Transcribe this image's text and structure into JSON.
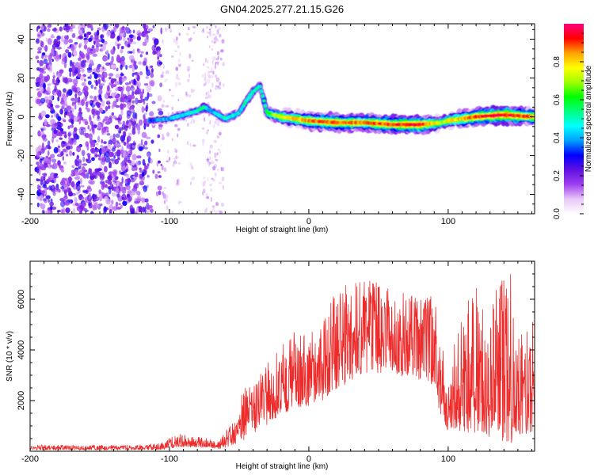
{
  "title": "GN04.2025.277.21.15.G26",
  "chart_data": [
    {
      "type": "heatmap",
      "xlabel": "Height of straight line (km)",
      "ylabel": "Frequency (Hz)",
      "xlim": [
        -200,
        162
      ],
      "ylim": [
        -50,
        48
      ],
      "xticks": [
        -200,
        -100,
        0,
        100
      ],
      "yticks": [
        -40,
        -20,
        0,
        20,
        40
      ],
      "colorbar": {
        "label": "Normalized spectral amplitude",
        "range": [
          0.0,
          1.0
        ],
        "ticks": [
          "0.0",
          "0.2",
          "0.4",
          "0.6",
          "0.8"
        ],
        "colormap": [
          "#ffffff",
          "#e8c8f8",
          "#a040f0",
          "#6010e0",
          "#0000ff",
          "#00a0ff",
          "#00ffff",
          "#00ff80",
          "#00ff00",
          "#a0ff00",
          "#ffff00",
          "#ffa000",
          "#ff0000",
          "#ff0080"
        ]
      },
      "ridge": {
        "x": [
          -115,
          -100,
          -90,
          -80,
          -75,
          -70,
          -60,
          -50,
          -45,
          -40,
          -35,
          -30,
          -20,
          0,
          20,
          40,
          60,
          80,
          95,
          100,
          120,
          140,
          162
        ],
        "frequency": [
          -2,
          -1,
          1,
          3,
          5,
          3,
          -1,
          2,
          8,
          13,
          16,
          2,
          0,
          -2,
          -3,
          -3,
          -4,
          -4,
          -3,
          -2,
          0,
          1,
          0
        ],
        "amplitude": [
          0.35,
          0.4,
          0.45,
          0.5,
          0.55,
          0.4,
          0.5,
          0.45,
          0.5,
          0.5,
          0.45,
          0.6,
          0.75,
          0.85,
          0.9,
          0.85,
          0.9,
          0.95,
          0.7,
          0.75,
          0.9,
          0.95,
          0.85
        ]
      },
      "noise_region_x": [
        -200,
        -110
      ]
    },
    {
      "type": "line",
      "xlabel": "Height of straight line (km)",
      "ylabel": "SNR (10 * v/v)",
      "xlim": [
        -200,
        162
      ],
      "ylim": [
        0,
        7500
      ],
      "xticks": [
        -200,
        -100,
        0,
        100
      ],
      "yticks": [
        2000,
        4000,
        6000
      ],
      "series": [
        {
          "name": "SNR",
          "color": "#ee2b2b",
          "envelope": {
            "x": [
              -200,
              -120,
              -105,
              -95,
              -85,
              -75,
              -65,
              -60,
              -55,
              -45,
              -40,
              -35,
              -30,
              -20,
              -10,
              0,
              10,
              20,
              30,
              40,
              60,
              80,
              90,
              95,
              100,
              110,
              120,
              125,
              130,
              140,
              145,
              150,
              155,
              162
            ],
            "low": [
              50,
              50,
              60,
              150,
              150,
              150,
              100,
              150,
              200,
              500,
              700,
              900,
              1000,
              1500,
              1600,
              1800,
              2000,
              2400,
              2800,
              3000,
              3000,
              2800,
              2500,
              1200,
              800,
              800,
              600,
              400,
              500,
              300,
              300,
              500,
              700,
              700
            ],
            "high": [
              250,
              250,
              350,
              700,
              600,
              550,
              400,
              800,
              1100,
              2800,
              2500,
              3000,
              3500,
              4200,
              5200,
              4800,
              5300,
              6500,
              6800,
              6800,
              6500,
              6000,
              6200,
              4200,
              3500,
              5500,
              6500,
              5800,
              6000,
              7500,
              7300,
              6400,
              5200,
              5200
            ]
          }
        }
      ]
    }
  ]
}
